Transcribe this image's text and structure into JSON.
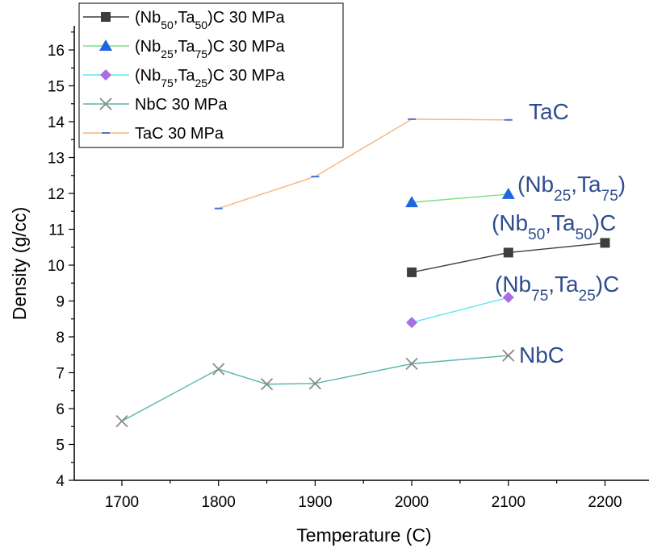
{
  "chart_data": {
    "type": "line",
    "xlabel": "Temperature (C)",
    "ylabel": "Density (g/cc)",
    "xlim": [
      1650,
      2250
    ],
    "ylim": [
      4,
      16.5
    ],
    "xticks": [
      1700,
      1800,
      1900,
      2000,
      2100,
      2200
    ],
    "yticks": [
      4,
      5,
      6,
      7,
      8,
      9,
      10,
      11,
      12,
      13,
      14,
      15,
      16
    ],
    "legend_position": "top-left",
    "series": [
      {
        "key": "nb50",
        "name": "(Nb50,Ta50)C 30 MPa",
        "name_parts": [
          [
            "(Nb",
            ""
          ],
          [
            "50",
            "sub"
          ],
          [
            ",Ta",
            ""
          ],
          [
            "50",
            "sub"
          ],
          [
            ")C 30 MPa",
            ""
          ]
        ],
        "marker": "square",
        "marker_color": "#3d3d3d",
        "line_color": "#3d3d3d",
        "x": [
          2000,
          2100,
          2200
        ],
        "y": [
          9.8,
          10.35,
          10.62
        ]
      },
      {
        "key": "nb25",
        "name": "(Nb25,Ta75)C 30 MPa",
        "name_parts": [
          [
            "(Nb",
            ""
          ],
          [
            "25",
            "sub"
          ],
          [
            ",Ta",
            ""
          ],
          [
            "75",
            "sub"
          ],
          [
            ")C 30 MPa",
            ""
          ]
        ],
        "marker": "triangle",
        "marker_color": "#1f66e0",
        "line_color": "#7fe07f",
        "x": [
          2000,
          2100
        ],
        "y": [
          11.75,
          11.98
        ]
      },
      {
        "key": "nb75",
        "name": "(Nb75,Ta25)C 30 MPa",
        "name_parts": [
          [
            "(Nb",
            ""
          ],
          [
            "75",
            "sub"
          ],
          [
            ",Ta",
            ""
          ],
          [
            "25",
            "sub"
          ],
          [
            ")C 30 MPa",
            ""
          ]
        ],
        "marker": "diamond",
        "marker_color": "#a96ee0",
        "line_color": "#5ee8f0",
        "x": [
          2000,
          2100
        ],
        "y": [
          8.4,
          9.1
        ]
      },
      {
        "key": "nbc",
        "name": "NbC 30 MPa",
        "name_parts": [
          [
            "NbC 30 MPa",
            ""
          ]
        ],
        "marker": "cross",
        "marker_color": "#8a8a8a",
        "line_color": "#5ab4ae",
        "x": [
          1700,
          1800,
          1850,
          1900,
          2000,
          2100
        ],
        "y": [
          5.65,
          7.1,
          6.68,
          6.7,
          7.25,
          7.48
        ]
      },
      {
        "key": "tac",
        "name": "TaC 30 MPa",
        "name_parts": [
          [
            "TaC 30 MPa",
            ""
          ]
        ],
        "marker": "dash",
        "marker_color": "#4a72d8",
        "line_color": "#f5b57e",
        "x": [
          1800,
          1900,
          2000,
          2100
        ],
        "y": [
          11.58,
          12.47,
          14.07,
          14.05
        ]
      }
    ],
    "annotations": [
      {
        "key": "tac",
        "parts": [
          [
            "TaC",
            ""
          ]
        ]
      },
      {
        "key": "nb25",
        "parts": [
          [
            "(Nb",
            ""
          ],
          [
            "25",
            "sub"
          ],
          [
            ",Ta",
            ""
          ],
          [
            "75",
            "sub"
          ],
          [
            ")",
            ""
          ]
        ]
      },
      {
        "key": "nb50",
        "parts": [
          [
            "(Nb",
            ""
          ],
          [
            "50",
            "sub"
          ],
          [
            ",Ta",
            ""
          ],
          [
            "50",
            "sub"
          ],
          [
            ")C",
            ""
          ]
        ]
      },
      {
        "key": "nb75",
        "parts": [
          [
            "(Nb",
            ""
          ],
          [
            "75",
            "sub"
          ],
          [
            ",Ta",
            ""
          ],
          [
            "25",
            "sub"
          ],
          [
            ")C",
            ""
          ]
        ]
      },
      {
        "key": "nbc",
        "parts": [
          [
            "NbC",
            ""
          ]
        ]
      }
    ]
  }
}
